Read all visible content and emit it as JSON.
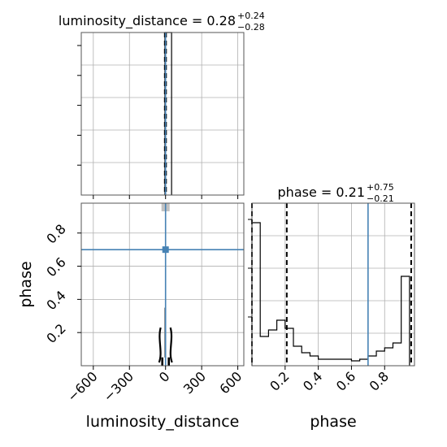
{
  "chart_data": {
    "type": "corner",
    "parameters": [
      "luminosity_distance",
      "phase"
    ],
    "truth_color": "#4682b4",
    "panels": [
      {
        "id": "luminosity_distance_hist",
        "kind": "histogram",
        "title": {
          "base": "luminosity_distance = 0.28",
          "sup": "+0.24",
          "sub": "−0.28"
        },
        "xlim": [
          -700,
          650
        ],
        "ylim": [
          0,
          1.0
        ],
        "bins": [
          [
            -5,
            0,
            1.0
          ],
          [
            0,
            50,
            1.0
          ]
        ],
        "quantiles": [
          0.0,
          0.28,
          0.52
        ],
        "truth": 0,
        "grid": true
      },
      {
        "id": "phase_vs_distance",
        "kind": "2d",
        "xlabel": "luminosity_distance",
        "ylabel": "phase",
        "xlim": [
          -700,
          650
        ],
        "ylim": [
          0.0,
          0.98
        ],
        "xticks": [
          -600,
          -300,
          0,
          300,
          600
        ],
        "xtick_labels": [
          "−600",
          "−300",
          "0",
          "300",
          "600"
        ],
        "yticks": [
          0.2,
          0.4,
          0.6,
          0.8
        ],
        "ytick_labels": [
          "0.2",
          "0.4",
          "0.6",
          "0.8"
        ],
        "truth": {
          "x": 0,
          "y": 0.7
        },
        "grid": true
      },
      {
        "id": "phase_hist",
        "kind": "histogram",
        "title": {
          "base": "phase = 0.21",
          "sup": "+0.75",
          "sub": "−0.21"
        },
        "xlabel": "phase",
        "xlim": [
          0.0,
          0.98
        ],
        "ylim": [
          0,
          1.0
        ],
        "xticks": [
          0.2,
          0.4,
          0.6,
          0.8
        ],
        "xtick_labels": [
          "0.2",
          "0.4",
          "0.6",
          "0.8"
        ],
        "bins": [
          [
            0.0,
            0.05,
            0.88
          ],
          [
            0.05,
            0.1,
            0.18
          ],
          [
            0.1,
            0.15,
            0.22
          ],
          [
            0.15,
            0.2,
            0.28
          ],
          [
            0.2,
            0.25,
            0.23
          ],
          [
            0.25,
            0.3,
            0.12
          ],
          [
            0.3,
            0.35,
            0.08
          ],
          [
            0.35,
            0.4,
            0.06
          ],
          [
            0.4,
            0.45,
            0.04
          ],
          [
            0.45,
            0.5,
            0.04
          ],
          [
            0.5,
            0.55,
            0.04
          ],
          [
            0.55,
            0.6,
            0.04
          ],
          [
            0.6,
            0.65,
            0.03
          ],
          [
            0.65,
            0.7,
            0.04
          ],
          [
            0.7,
            0.75,
            0.06
          ],
          [
            0.75,
            0.8,
            0.09
          ],
          [
            0.8,
            0.85,
            0.11
          ],
          [
            0.85,
            0.9,
            0.14
          ],
          [
            0.9,
            0.95,
            0.55
          ]
        ],
        "quantiles": [
          0.0,
          0.21,
          0.96
        ],
        "truth": 0.7,
        "grid": true
      }
    ]
  }
}
